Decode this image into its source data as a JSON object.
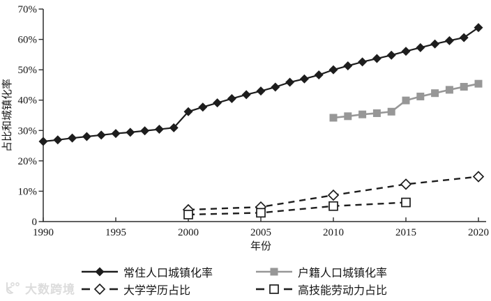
{
  "watermark": {
    "text": "大数跨境"
  },
  "colors": {
    "black_series": "#1d1d1d",
    "gray_series": "#979797",
    "axis": "#2b2b2b",
    "text": "#151515",
    "watermark": "#dcdcdc",
    "background": "#ffffff"
  },
  "chart_data": {
    "type": "line",
    "title": "",
    "xlabel": "年份",
    "ylabel": "占比和城镇化率",
    "xlim": [
      1990,
      2020
    ],
    "ylim": [
      0,
      70
    ],
    "x_ticks": [
      1990,
      1995,
      2000,
      2005,
      2010,
      2015,
      2020
    ],
    "y_ticks": [
      0,
      10,
      20,
      30,
      40,
      50,
      60,
      70
    ],
    "y_tick_labels": [
      "0",
      "10%",
      "20%",
      "30%",
      "40%",
      "50%",
      "60%",
      "70%"
    ],
    "grid": false,
    "legend_position": "bottom",
    "series": [
      {
        "name": "常住人口城镇化率",
        "marker": "diamond-filled",
        "line": "solid",
        "color": "#1d1d1d",
        "x": [
          1990,
          1991,
          1992,
          1993,
          1994,
          1995,
          1996,
          1997,
          1998,
          1999,
          2000,
          2001,
          2002,
          2003,
          2004,
          2005,
          2006,
          2007,
          2008,
          2009,
          2010,
          2011,
          2012,
          2013,
          2014,
          2015,
          2016,
          2017,
          2018,
          2019,
          2020
        ],
        "values": [
          26.4,
          26.9,
          27.5,
          28.0,
          28.5,
          29.0,
          29.4,
          29.9,
          30.4,
          30.9,
          36.2,
          37.7,
          39.1,
          40.5,
          41.8,
          43.0,
          44.3,
          45.9,
          47.0,
          48.3,
          50.0,
          51.3,
          52.6,
          53.7,
          54.8,
          56.1,
          57.3,
          58.5,
          59.6,
          60.6,
          63.9
        ]
      },
      {
        "name": "户籍人口城镇化率",
        "marker": "square-filled",
        "line": "solid",
        "color": "#979797",
        "x": [
          2010,
          2011,
          2012,
          2013,
          2014,
          2015,
          2016,
          2017,
          2018,
          2019,
          2020
        ],
        "values": [
          34.2,
          34.7,
          35.3,
          35.7,
          36.2,
          39.9,
          41.2,
          42.3,
          43.4,
          44.4,
          45.4
        ]
      },
      {
        "name": "大学学历占比",
        "marker": "diamond-open",
        "line": "dashed",
        "color": "#1d1d1d",
        "x": [
          2000,
          2005,
          2010,
          2015,
          2020
        ],
        "values": [
          3.9,
          4.8,
          8.7,
          12.3,
          14.8
        ]
      },
      {
        "name": "高技能劳动力占比",
        "marker": "square-open",
        "line": "dashed",
        "color": "#1d1d1d",
        "x": [
          2000,
          2005,
          2010,
          2015
        ],
        "values": [
          2.3,
          2.9,
          5.1,
          6.3
        ]
      }
    ]
  }
}
